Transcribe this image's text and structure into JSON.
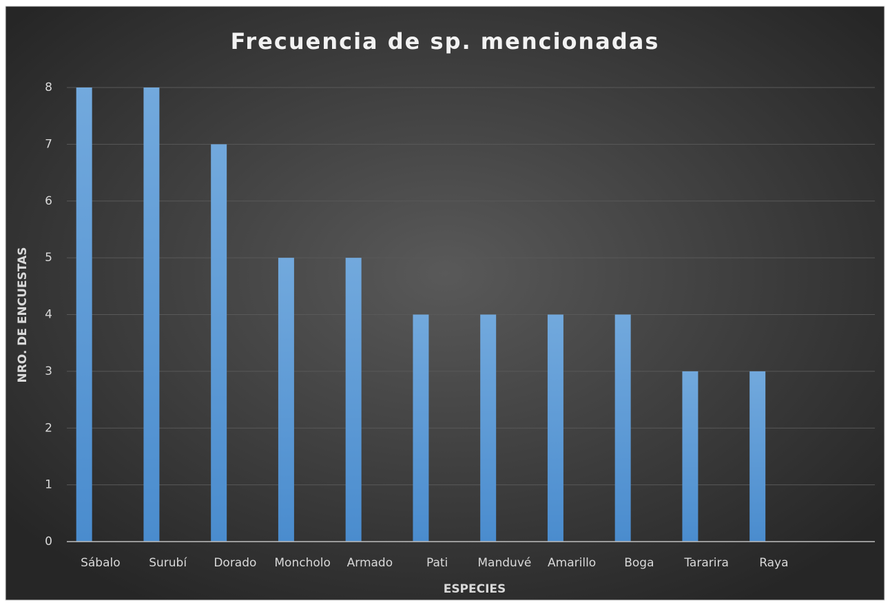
{
  "chart_data": {
    "type": "bar",
    "title": "Frecuencia de sp. mencionadas",
    "x_label": "ESPECIES",
    "y_label": "NRO. DE ENCUESTAS",
    "categories": [
      "Sábalo",
      "Surubí",
      "Dorado",
      "Moncholo",
      "Armado",
      "Pati",
      "Manduvé",
      "Amarillo",
      "Boga",
      "Tararira",
      "Raya",
      null
    ],
    "values": [
      8,
      8,
      7,
      5,
      5,
      4,
      4,
      4,
      4,
      3,
      3,
      null
    ],
    "color": "#5b9bd5",
    "ylim": [
      0,
      8
    ],
    "yticks": [
      0,
      1,
      2,
      3,
      4,
      5,
      6,
      7,
      8
    ],
    "grid": true
  }
}
